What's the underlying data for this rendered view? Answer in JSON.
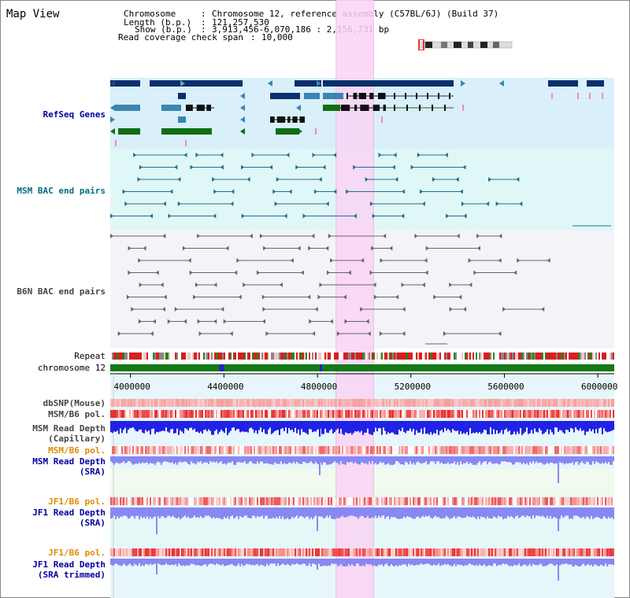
{
  "page": {
    "title": "Map View"
  },
  "info": {
    "chromosome_label": "Chromosome",
    "chromosome_value": "Chromosome 12, reference assembly (C57BL/6J) (Build 37)",
    "length_label": "Length (b.p.)",
    "length_value": "121,257,530",
    "show_label": "Show (b.p.)",
    "show_value": "3,913,456-6,070,186 : 2,156,731 bp",
    "coverage_label": "Read coverage check span",
    "coverage_value": "10,000"
  },
  "tracks": {
    "refseq": "RefSeq Genes",
    "msm_bac": "MSM BAC end pairs",
    "b6n_bac": "B6N BAC end pairs",
    "repeat": "Repeat",
    "chromosome": "chromosome 12",
    "dbsnp": "dbSNP(Mouse)",
    "msm_b6_pol_1": "MSM/B6 pol.",
    "msm_depth_cap_1": "MSM Read Depth",
    "msm_depth_cap_2": "(Capillary)",
    "msm_b6_pol_2": "MSM/B6 pol.",
    "msm_depth_sra_1": "MSM Read Depth",
    "msm_depth_sra_2": "(SRA)",
    "jf1_b6_pol_1": "JF1/B6 pol.",
    "jf1_depth_sra_1": "JF1 Read Depth",
    "jf1_depth_sra_2": "(SRA)",
    "jf1_b6_pol_2": "JF1/B6 pol.",
    "jf1_depth_trim_1": "JF1 Read Depth",
    "jf1_depth_trim_2": "(SRA trimmed)"
  },
  "axis": {
    "ticks": [
      "4000000",
      "4400000",
      "4800000",
      "5200000",
      "5600000",
      "6000000"
    ],
    "tick_values": [
      4000000,
      4400000,
      4800000,
      5200000,
      5600000,
      6000000
    ],
    "range": [
      3913456,
      6070186
    ]
  },
  "highlight": {
    "start": 4880000,
    "end": 5040000,
    "color": "#f9d4f4"
  },
  "colors": {
    "refseq_bg": "#d9eff9",
    "msm_bg": "#e0f7f7",
    "b6n_bg": "#f4f4f8",
    "gene_dark": "#0a2f6b",
    "gene_mid": "#3a86b0",
    "gene_green": "#0f6e14",
    "msm_line": "#1f6f8f",
    "b6n_line": "#666666",
    "chrom_green": "#137a17",
    "depth_blue": "#2222e6",
    "depth_light": "#8888f2"
  }
}
